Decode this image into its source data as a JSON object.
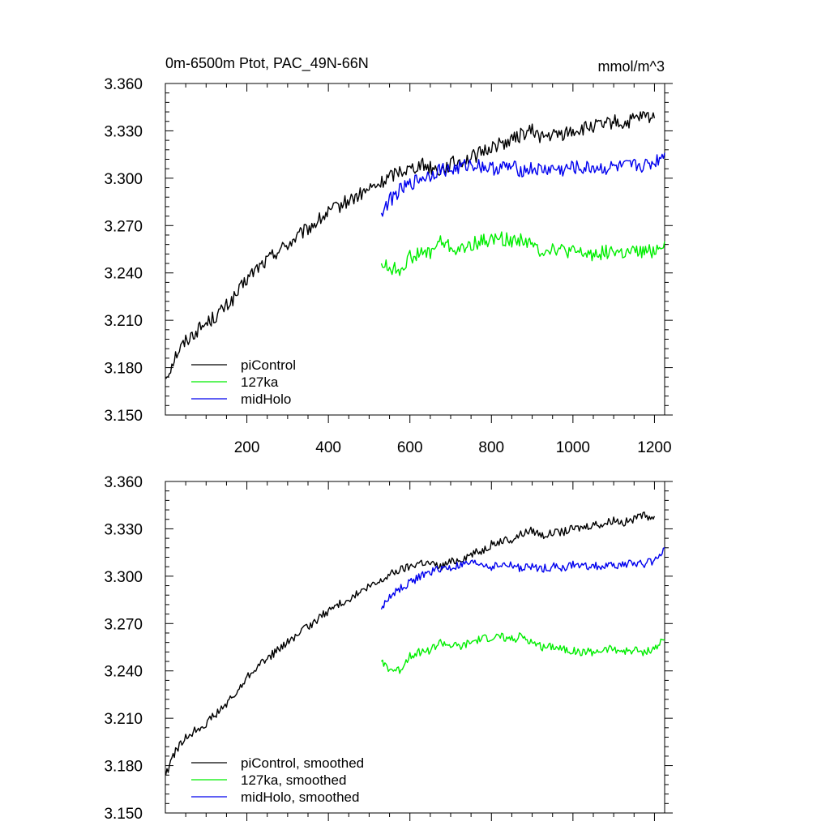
{
  "chart_data": [
    {
      "type": "line",
      "title": "0m-6500m Ptot, PAC_49N-66N",
      "units": "mmol/m^3",
      "xlabel": "",
      "ylabel": "",
      "xlim": [
        0,
        1225
      ],
      "ylim": [
        3.15,
        3.36
      ],
      "xticks": [
        200,
        400,
        600,
        800,
        1000,
        1200
      ],
      "xtick_labels": [
        "200",
        "400",
        "600",
        "800",
        "1000",
        "1200"
      ],
      "yticks": [
        3.15,
        3.18,
        3.21,
        3.24,
        3.27,
        3.3,
        3.33,
        3.36
      ],
      "ytick_labels": [
        "3.150",
        "3.180",
        "3.210",
        "3.240",
        "3.270",
        "3.300",
        "3.330",
        "3.360"
      ],
      "legend_position": "bottom-left",
      "series": [
        {
          "name": "piControl",
          "color": "#000000",
          "x": [
            1,
            25,
            50,
            75,
            100,
            125,
            150,
            175,
            200,
            225,
            250,
            275,
            300,
            325,
            350,
            375,
            400,
            425,
            450,
            475,
            500,
            525,
            550,
            575,
            600,
            625,
            650,
            675,
            700,
            725,
            750,
            775,
            800,
            825,
            850,
            875,
            900,
            925,
            950,
            975,
            1000,
            1025,
            1050,
            1075,
            1100,
            1125,
            1150,
            1175,
            1200
          ],
          "values": [
            3.173,
            3.188,
            3.197,
            3.203,
            3.208,
            3.213,
            3.219,
            3.226,
            3.236,
            3.243,
            3.248,
            3.254,
            3.258,
            3.263,
            3.268,
            3.273,
            3.278,
            3.282,
            3.286,
            3.289,
            3.293,
            3.296,
            3.301,
            3.305,
            3.306,
            3.309,
            3.307,
            3.305,
            3.309,
            3.311,
            3.313,
            3.316,
            3.32,
            3.322,
            3.324,
            3.328,
            3.33,
            3.326,
            3.327,
            3.328,
            3.33,
            3.331,
            3.333,
            3.333,
            3.336,
            3.334,
            3.337,
            3.339,
            3.338
          ]
        },
        {
          "name": "127ka",
          "color": "#00ee00",
          "x": [
            530,
            550,
            575,
            600,
            625,
            650,
            675,
            700,
            725,
            750,
            775,
            800,
            825,
            850,
            875,
            900,
            925,
            950,
            975,
            1000,
            1025,
            1050,
            1075,
            1100,
            1125,
            1150,
            1175,
            1200,
            1225
          ],
          "values": [
            3.246,
            3.243,
            3.242,
            3.25,
            3.252,
            3.253,
            3.26,
            3.256,
            3.254,
            3.258,
            3.26,
            3.261,
            3.262,
            3.26,
            3.262,
            3.257,
            3.254,
            3.256,
            3.254,
            3.253,
            3.252,
            3.252,
            3.253,
            3.254,
            3.252,
            3.253,
            3.253,
            3.254,
            3.26
          ]
        },
        {
          "name": "midHolo",
          "color": "#0000ee",
          "x": [
            530,
            550,
            575,
            600,
            625,
            650,
            675,
            700,
            725,
            750,
            775,
            800,
            825,
            850,
            875,
            900,
            925,
            950,
            975,
            1000,
            1025,
            1050,
            1075,
            1100,
            1125,
            1150,
            1175,
            1200,
            1225
          ],
          "values": [
            3.278,
            3.286,
            3.292,
            3.296,
            3.3,
            3.302,
            3.306,
            3.305,
            3.307,
            3.309,
            3.308,
            3.306,
            3.307,
            3.307,
            3.305,
            3.306,
            3.305,
            3.306,
            3.305,
            3.307,
            3.306,
            3.307,
            3.306,
            3.307,
            3.307,
            3.308,
            3.308,
            3.31,
            3.316
          ]
        }
      ]
    },
    {
      "type": "line",
      "title": "",
      "xlabel": "",
      "ylabel": "",
      "xlim": [
        0,
        1225
      ],
      "ylim": [
        3.15,
        3.36
      ],
      "xticks": [
        200,
        400,
        600,
        800,
        1000,
        1200
      ],
      "xtick_labels": [],
      "yticks": [
        3.15,
        3.18,
        3.21,
        3.24,
        3.27,
        3.3,
        3.33,
        3.36
      ],
      "ytick_labels": [
        "3.150",
        "3.180",
        "3.210",
        "3.240",
        "3.270",
        "3.300",
        "3.330",
        "3.360"
      ],
      "legend_position": "bottom-left",
      "series": [
        {
          "name": "piControl, smoothed",
          "color": "#000000",
          "x": [
            1,
            25,
            50,
            75,
            100,
            125,
            150,
            175,
            200,
            225,
            250,
            275,
            300,
            325,
            350,
            375,
            400,
            425,
            450,
            475,
            500,
            525,
            550,
            575,
            600,
            625,
            650,
            675,
            700,
            725,
            750,
            775,
            800,
            825,
            850,
            875,
            900,
            925,
            950,
            975,
            1000,
            1025,
            1050,
            1075,
            1100,
            1125,
            1150,
            1175,
            1200
          ],
          "values": [
            3.174,
            3.189,
            3.198,
            3.203,
            3.207,
            3.213,
            3.219,
            3.226,
            3.236,
            3.243,
            3.248,
            3.253,
            3.258,
            3.263,
            3.268,
            3.273,
            3.278,
            3.282,
            3.286,
            3.289,
            3.293,
            3.296,
            3.301,
            3.304,
            3.306,
            3.309,
            3.308,
            3.306,
            3.309,
            3.311,
            3.314,
            3.316,
            3.32,
            3.322,
            3.323,
            3.327,
            3.329,
            3.326,
            3.327,
            3.328,
            3.33,
            3.331,
            3.333,
            3.333,
            3.336,
            3.334,
            3.336,
            3.338,
            3.338
          ]
        },
        {
          "name": "127ka, smoothed",
          "color": "#00ee00",
          "x": [
            530,
            550,
            575,
            600,
            625,
            650,
            675,
            700,
            725,
            750,
            775,
            800,
            825,
            850,
            875,
            900,
            925,
            950,
            975,
            1000,
            1025,
            1050,
            1075,
            1100,
            1125,
            1150,
            1175,
            1200,
            1225
          ],
          "values": [
            3.246,
            3.241,
            3.24,
            3.25,
            3.252,
            3.253,
            3.258,
            3.256,
            3.255,
            3.258,
            3.26,
            3.261,
            3.262,
            3.26,
            3.262,
            3.258,
            3.255,
            3.256,
            3.254,
            3.253,
            3.252,
            3.252,
            3.253,
            3.254,
            3.252,
            3.253,
            3.252,
            3.254,
            3.26
          ]
        },
        {
          "name": "midHolo, smoothed",
          "color": "#0000ee",
          "x": [
            530,
            550,
            575,
            600,
            625,
            650,
            675,
            700,
            725,
            750,
            775,
            800,
            825,
            850,
            875,
            900,
            925,
            950,
            975,
            1000,
            1025,
            1050,
            1075,
            1100,
            1125,
            1150,
            1175,
            1200,
            1225
          ],
          "values": [
            3.279,
            3.287,
            3.292,
            3.296,
            3.3,
            3.302,
            3.305,
            3.305,
            3.307,
            3.308,
            3.308,
            3.306,
            3.307,
            3.307,
            3.305,
            3.306,
            3.305,
            3.306,
            3.305,
            3.307,
            3.306,
            3.307,
            3.306,
            3.307,
            3.307,
            3.308,
            3.308,
            3.31,
            3.318
          ]
        }
      ]
    }
  ]
}
